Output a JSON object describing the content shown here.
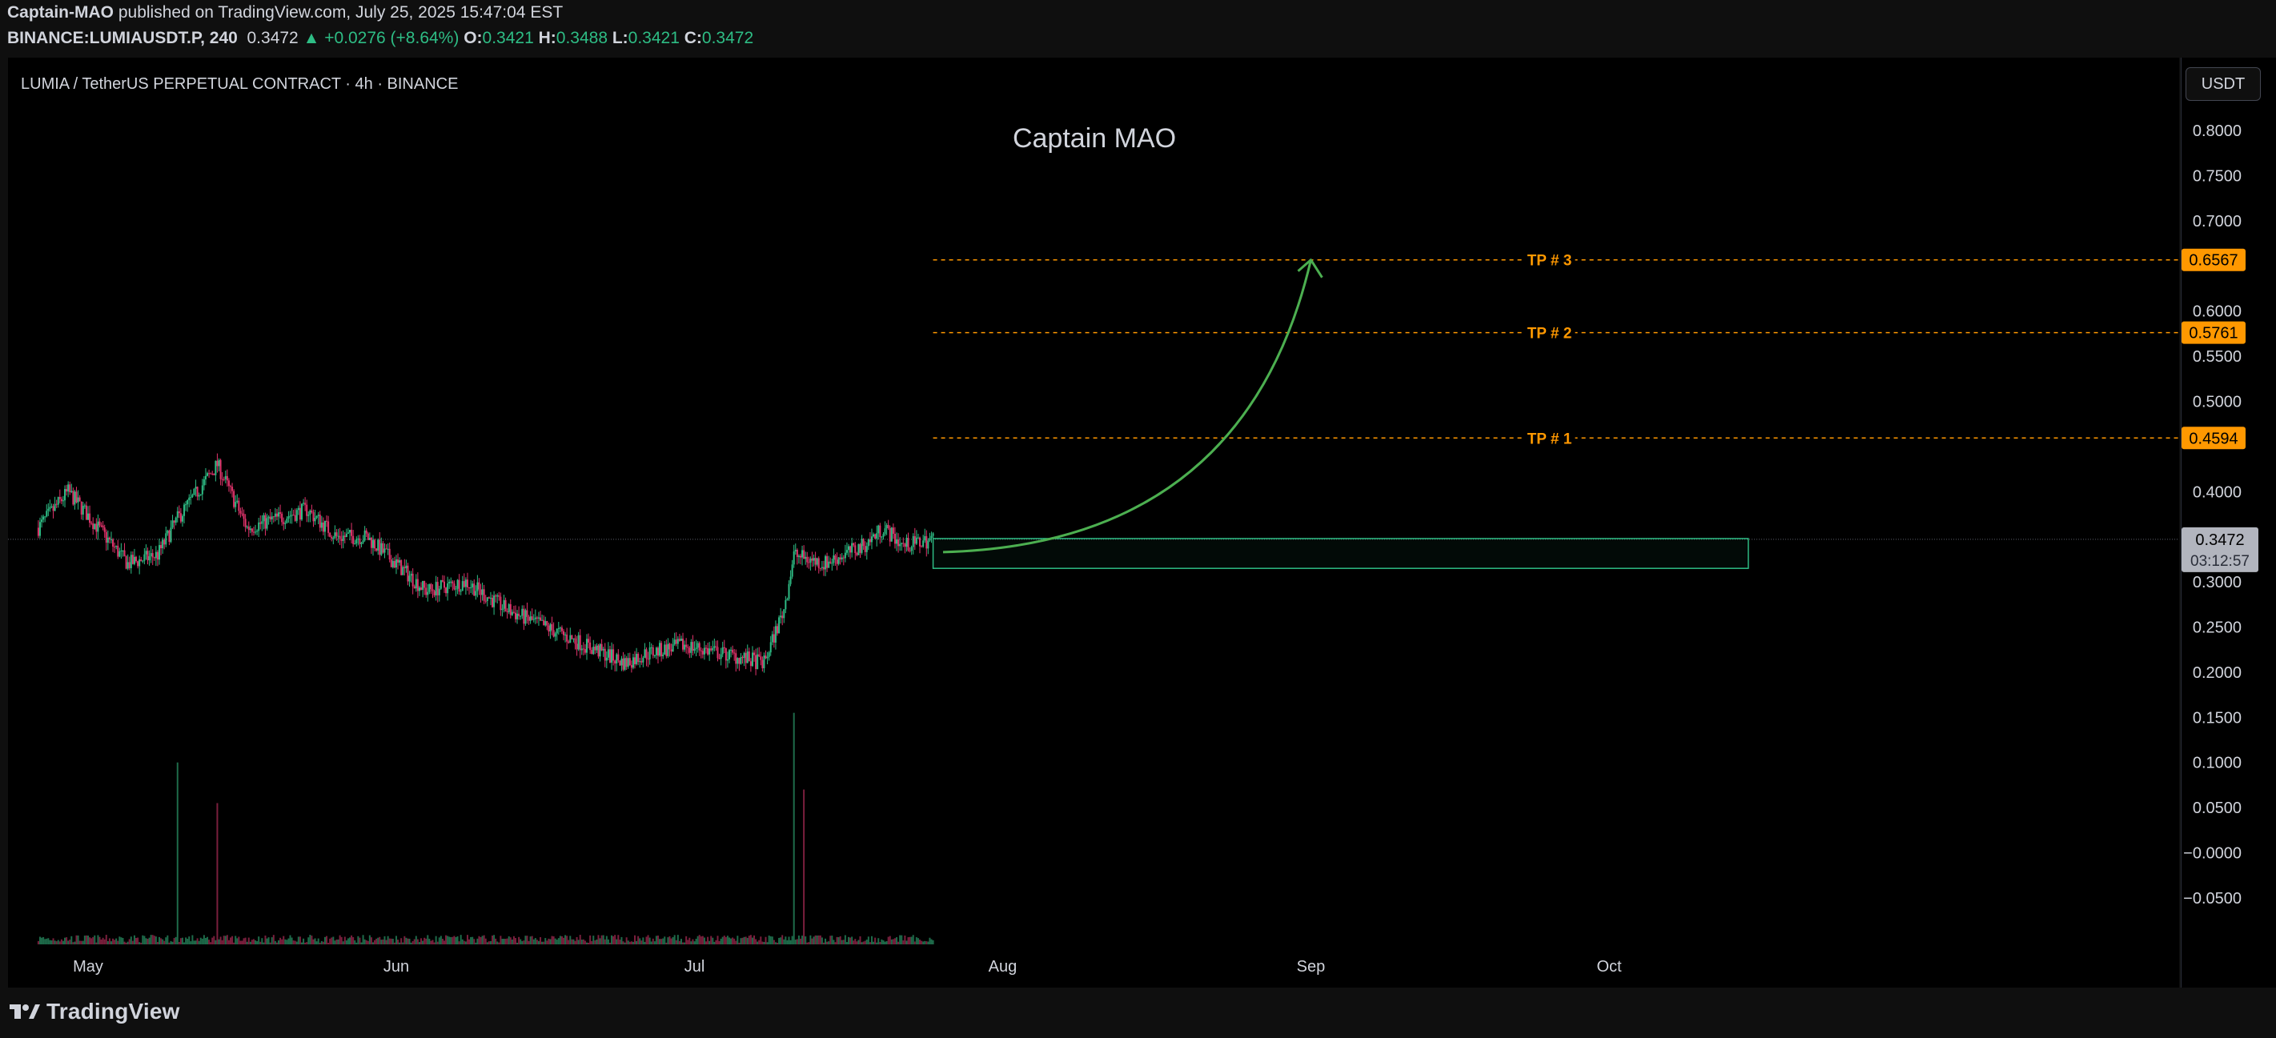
{
  "header": {
    "publisher": "Captain-MAO",
    "published_text": "published on TradingView.com, July 25, 2025 15:47:04 EST",
    "symbol": "BINANCE:LUMIAUSDT.P, 240",
    "last": "0.3472",
    "change_arrow": "▲",
    "change": "+0.0276 (+8.64%)",
    "o_label": "O:",
    "o": "0.3421",
    "h_label": "H:",
    "h": "0.3488",
    "l_label": "L:",
    "l": "0.3421",
    "c_label": "C:",
    "c": "0.3472"
  },
  "currency_button": "USDT",
  "footer": {
    "brand": "TradingView",
    "logo_icon": "tradingview-logo-icon"
  },
  "colors": {
    "up": "#2ebd85",
    "down": "#e0336b",
    "tp": "#ff9800",
    "zone": "#2ebd85",
    "arrow": "#4caf50",
    "current": "#b2b5be"
  },
  "chart_data": {
    "type": "candlestick",
    "title": "LUMIA / TetherUS PERPETUAL CONTRACT · 4h · BINANCE",
    "watermark": "Captain MAO",
    "x_ticks": [
      "May",
      "Jun",
      "Jul",
      "Aug",
      "Sep",
      "Oct"
    ],
    "y_ticks": [
      "0.8000",
      "0.7500",
      "0.7000",
      "0.6000",
      "0.5500",
      "0.5000",
      "0.4000",
      "0.3000",
      "0.2500",
      "0.2000",
      "0.1500",
      "0.1000",
      "0.0500",
      "−0.0000",
      "−0.0500"
    ],
    "ylim": [
      -0.08,
      0.84
    ],
    "price_series": {
      "dates": [
        "2025-04-26",
        "2025-04-29",
        "2025-05-02",
        "2025-05-05",
        "2025-05-08",
        "2025-05-10",
        "2025-05-12",
        "2025-05-14",
        "2025-05-17",
        "2025-05-20",
        "2025-05-23",
        "2025-05-26",
        "2025-05-29",
        "2025-06-01",
        "2025-06-04",
        "2025-06-08",
        "2025-06-12",
        "2025-06-16",
        "2025-06-20",
        "2025-06-24",
        "2025-06-26",
        "2025-06-30",
        "2025-07-04",
        "2025-07-08",
        "2025-07-10",
        "2025-07-11",
        "2025-07-14",
        "2025-07-18",
        "2025-07-20",
        "2025-07-22",
        "2025-07-25"
      ],
      "close": [
        0.36,
        0.4,
        0.36,
        0.32,
        0.33,
        0.37,
        0.4,
        0.43,
        0.36,
        0.37,
        0.38,
        0.35,
        0.35,
        0.32,
        0.29,
        0.3,
        0.27,
        0.25,
        0.23,
        0.21,
        0.22,
        0.23,
        0.22,
        0.21,
        0.27,
        0.33,
        0.32,
        0.34,
        0.36,
        0.34,
        0.3472
      ]
    },
    "volume_note": "volume bars along bottom of chart; spikes near May 10, May 14, Jul 11",
    "levels": [
      {
        "label": "TP # 3",
        "value": 0.6567,
        "tag": "0.6567"
      },
      {
        "label": "TP # 2",
        "value": 0.5761,
        "tag": "0.5761"
      },
      {
        "label": "TP # 1",
        "value": 0.4594,
        "tag": "0.4594"
      }
    ],
    "current_price": {
      "value": 0.3472,
      "tag": "0.3472",
      "countdown": "03:12:57"
    },
    "entry_zone": {
      "from": 0.315,
      "to": 0.348,
      "start": "2025-07-25",
      "end": "2025-10-15"
    },
    "projection_arrow": {
      "from_date": "2025-07-26",
      "from_value": 0.333,
      "to_date": "2025-09-01",
      "to_value": 0.6567
    }
  }
}
